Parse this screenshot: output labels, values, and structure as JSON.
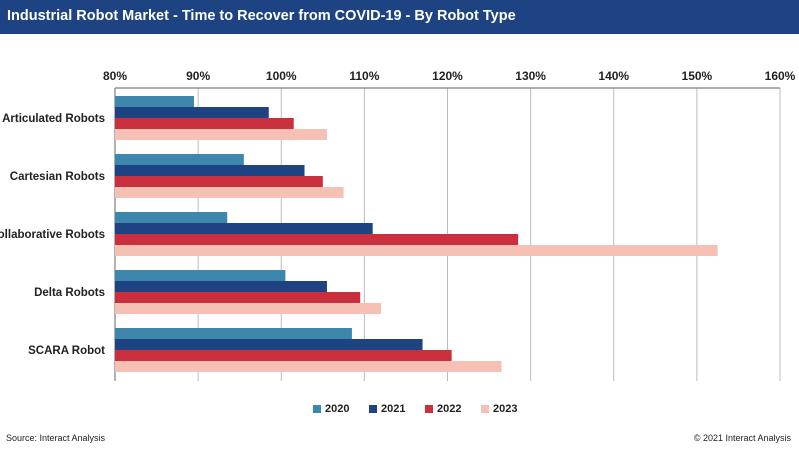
{
  "header": {
    "title": "Industrial Robot Market - Time to Recover from COVID-19 - By Robot Type"
  },
  "footer": {
    "source": "Source: Interact Analysis",
    "copyright": "© 2021 Interact Analysis"
  },
  "colors": {
    "title_bar": "#1d4382",
    "grid": "#bcbcbc",
    "axis": "#7f7f7f"
  },
  "chart_data": {
    "type": "bar",
    "orientation": "horizontal",
    "title": "Industrial Robot Market - Time to Recover from COVID-19 - By Robot Type",
    "xlabel": "",
    "ylabel": "",
    "xlim": [
      80,
      160
    ],
    "x_ticks": [
      80,
      90,
      100,
      110,
      120,
      130,
      140,
      150,
      160
    ],
    "tick_format": "percent",
    "grid": true,
    "axis_position": "top",
    "legend_position": "bottom",
    "categories": [
      "Articulated Robots",
      "Cartesian Robots",
      "Collaborative Robots",
      "Delta Robots",
      "SCARA Robot"
    ],
    "series": [
      {
        "name": "2020",
        "color": "#3c87ab",
        "values": [
          89.5,
          95.5,
          93.5,
          100.5,
          108.5
        ]
      },
      {
        "name": "2021",
        "color": "#1d4382",
        "values": [
          98.5,
          102.8,
          111.0,
          105.5,
          117.0
        ]
      },
      {
        "name": "2022",
        "color": "#c92f3c",
        "values": [
          101.5,
          105.0,
          128.5,
          109.5,
          120.5
        ]
      },
      {
        "name": "2023",
        "color": "#f6c0b4",
        "values": [
          105.5,
          107.5,
          152.5,
          112.0,
          126.5
        ]
      }
    ]
  }
}
